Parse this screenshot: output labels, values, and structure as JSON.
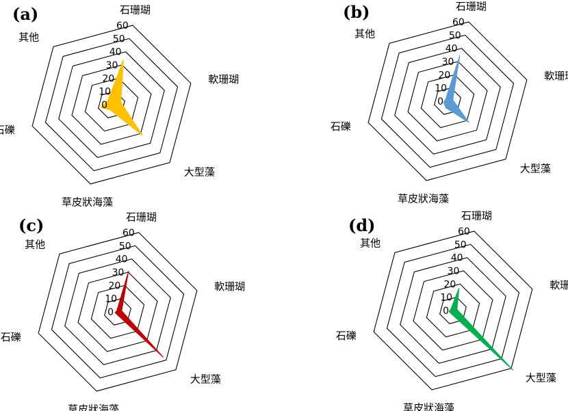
{
  "chart_data": [
    {
      "type": "radar",
      "panel_label": "(a)",
      "axes": [
        "石珊瑚",
        "軟珊瑚",
        "大型藻",
        "草皮狀海藻",
        "石礫",
        "其他"
      ],
      "ticks": [
        "0",
        "10",
        "20",
        "30",
        "40",
        "50",
        "60"
      ],
      "rlim": [
        0,
        60
      ],
      "values": [
        34,
        7,
        32,
        4,
        8,
        4
      ],
      "color": "#ffc000"
    },
    {
      "type": "radar",
      "panel_label": "(b)",
      "axes": [
        "石珊瑚",
        "軟珊瑚",
        "大型藻",
        "草皮狀海藻",
        "石礫",
        "其他"
      ],
      "ticks": [
        "0",
        "10",
        "20",
        "30",
        "40",
        "50",
        "60"
      ],
      "rlim": [
        0,
        60
      ],
      "values": [
        35,
        4,
        22,
        5,
        3,
        2
      ],
      "color": "#5b9bd5"
    },
    {
      "type": "radar",
      "panel_label": "(c)",
      "axes": [
        "石珊瑚",
        "軟珊瑚",
        "大型藻",
        "草皮狀海藻",
        "石礫",
        "其他"
      ],
      "ticks": [
        "0",
        "10",
        "20",
        "30",
        "40",
        "50",
        "60"
      ],
      "rlim": [
        0,
        60
      ],
      "values": [
        31,
        3,
        47,
        2,
        2,
        1
      ],
      "color": "#c00000"
    },
    {
      "type": "radar",
      "panel_label": "(d)",
      "axes": [
        "石珊瑚",
        "軟珊瑚",
        "大型藻",
        "草皮狀海藻",
        "石礫",
        "其他"
      ],
      "ticks": [
        "0",
        "10",
        "20",
        "30",
        "40",
        "50",
        "60"
      ],
      "rlim": [
        0,
        60
      ],
      "values": [
        17,
        3,
        62,
        3,
        3,
        2
      ],
      "color": "#00b050"
    }
  ]
}
